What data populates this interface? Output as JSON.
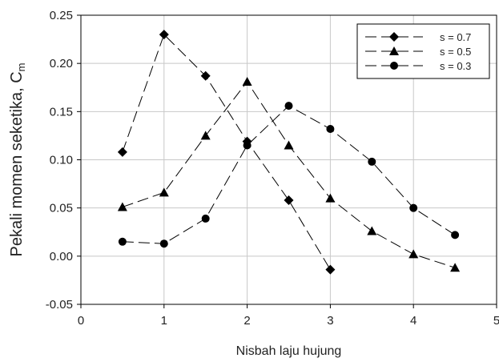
{
  "chart_data": {
    "type": "line",
    "xlabel": "Nisbah laju hujung",
    "ylabel": "Pekali momen seketika, C",
    "ylabel_sub": "m",
    "xlim": [
      0,
      5
    ],
    "ylim": [
      -0.05,
      0.25
    ],
    "xticks": [
      0,
      1,
      2,
      3,
      4,
      5
    ],
    "xtick_labels": [
      "0",
      "1",
      "2",
      "3",
      "4",
      "5"
    ],
    "yticks": [
      -0.05,
      0.0,
      0.05,
      0.1,
      0.15,
      0.2,
      0.25
    ],
    "ytick_labels": [
      "-0.05",
      "0.00",
      "0.05",
      "0.10",
      "0.15",
      "0.20",
      "0.25"
    ],
    "grid": true,
    "legend_position": "top-right",
    "line_style": "dashed",
    "series": [
      {
        "name": "s = 0.7",
        "marker": "diamond",
        "x": [
          0.5,
          1.0,
          1.5,
          2.0,
          2.5,
          3.0
        ],
        "values": [
          0.108,
          0.23,
          0.187,
          0.119,
          0.058,
          -0.014
        ]
      },
      {
        "name": "s = 0.5",
        "marker": "triangle",
        "x": [
          0.5,
          1.0,
          1.5,
          2.0,
          2.5,
          3.0,
          3.5,
          4.0,
          4.5
        ],
        "values": [
          0.051,
          0.066,
          0.125,
          0.181,
          0.115,
          0.06,
          0.026,
          0.002,
          -0.012
        ]
      },
      {
        "name": "s = 0.3",
        "marker": "circle",
        "x": [
          0.5,
          1.0,
          1.5,
          2.0,
          2.5,
          3.0,
          3.5,
          4.0,
          4.5
        ],
        "values": [
          0.015,
          0.013,
          0.039,
          0.115,
          0.156,
          0.132,
          0.098,
          0.05,
          0.022
        ]
      }
    ]
  }
}
